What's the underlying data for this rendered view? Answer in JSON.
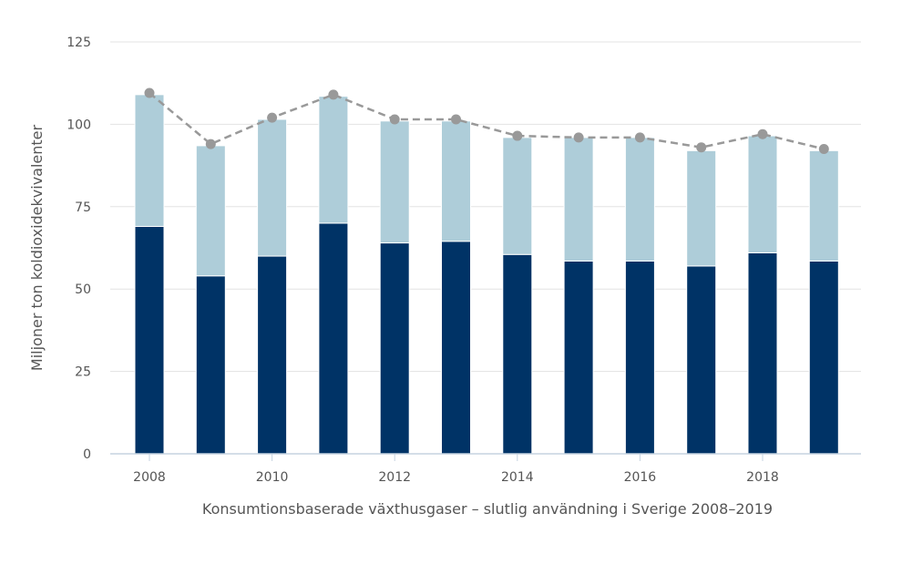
{
  "chart_data": {
    "type": "bar",
    "stacked": true,
    "title": "",
    "xlabel": "Konsumtionsbaserade växthusgaser – slutlig användning i Sverige 2008–2019",
    "ylabel": "Miljoner ton koldioxidekvivalenter",
    "ylim": [
      0,
      125
    ],
    "yticks": [
      0,
      25,
      50,
      75,
      100,
      125
    ],
    "xtick_labels": [
      "2008",
      "2010",
      "2012",
      "2014",
      "2016",
      "2018"
    ],
    "categories": [
      "2008",
      "2009",
      "2010",
      "2011",
      "2012",
      "2013",
      "2014",
      "2015",
      "2016",
      "2017",
      "2018",
      "2019"
    ],
    "series": [
      {
        "name": "",
        "kind": "bar",
        "color": "#003366",
        "values": [
          69,
          54,
          60,
          70,
          64,
          64.5,
          60.5,
          58.5,
          58.5,
          57,
          61,
          58.5
        ]
      },
      {
        "name": "",
        "kind": "bar",
        "color": "#aecdd9",
        "values": [
          40,
          39.5,
          41.5,
          38.5,
          37,
          36.5,
          35.5,
          37.5,
          37.5,
          35,
          35.5,
          33.5
        ]
      },
      {
        "name": "",
        "kind": "line",
        "color": "#999999",
        "values": [
          109.5,
          94,
          102,
          109,
          101.5,
          101.5,
          96.5,
          96,
          96,
          93,
          97,
          92.5
        ]
      }
    ],
    "grid": true,
    "legend": "none"
  }
}
